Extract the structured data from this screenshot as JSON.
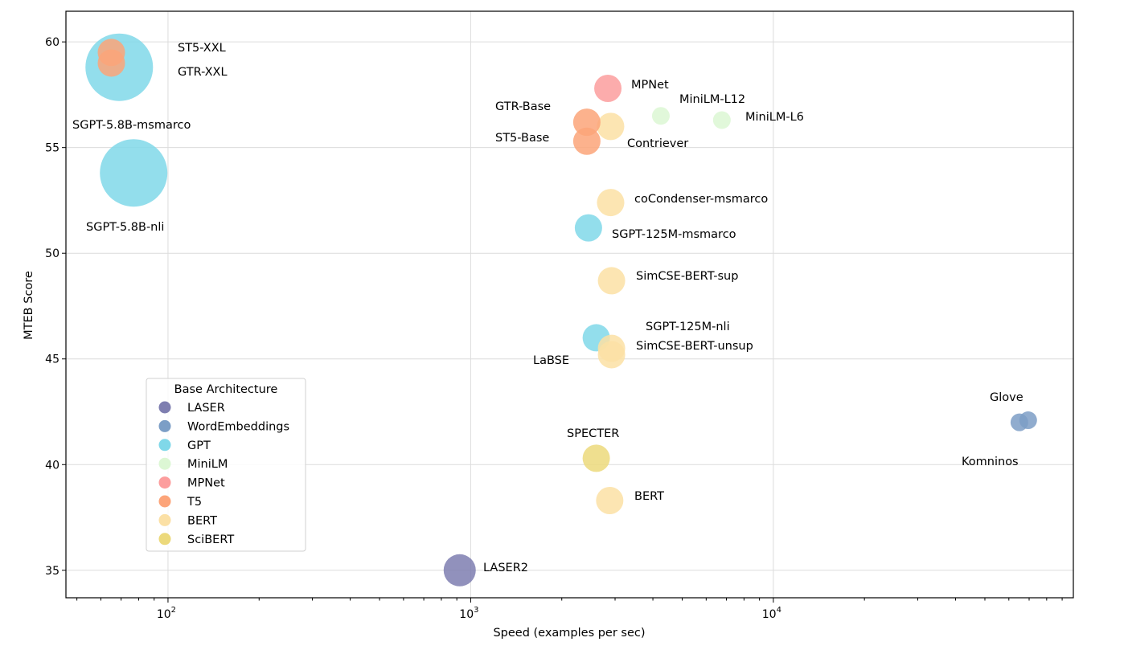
{
  "chart_data": {
    "type": "scatter",
    "title": "",
    "xlabel": "Speed (examples per sec)",
    "ylabel": "MTEB Score",
    "xscale": "log",
    "xlim": [
      46,
      98000
    ],
    "ylim": [
      33.7,
      61.45
    ],
    "x_ticks": [
      {
        "base": "10",
        "exp": "2",
        "value": 100
      },
      {
        "base": "10",
        "exp": "3",
        "value": 1000
      },
      {
        "base": "10",
        "exp": "4",
        "value": 10000
      }
    ],
    "y_ticks": [
      35,
      40,
      45,
      50,
      55,
      60
    ],
    "grid": true,
    "legend": {
      "title": "Base Architecture",
      "placement": "lower-left",
      "entries": [
        {
          "name": "LASER",
          "color": "#7e7eb0"
        },
        {
          "name": "WordEmbeddings",
          "color": "#7c9ec6"
        },
        {
          "name": "GPT",
          "color": "#80d8e9"
        },
        {
          "name": "MiniLM",
          "color": "#dcf7d4"
        },
        {
          "name": "MPNet",
          "color": "#fc9d9d"
        },
        {
          "name": "T5",
          "color": "#fca479"
        },
        {
          "name": "BERT",
          "color": "#fbe0a5"
        },
        {
          "name": "SciBERT",
          "color": "#ecd97b"
        }
      ]
    },
    "points": [
      {
        "label": "SGPT-5.8B-msmarco",
        "arch": "GPT",
        "x": 69,
        "y": 58.8
      },
      {
        "label": "SGPT-5.8B-nli",
        "arch": "GPT",
        "x": 77,
        "y": 53.8
      },
      {
        "label": "ST5-XXL",
        "arch": "T5",
        "x": 65,
        "y": 59.5
      },
      {
        "label": "GTR-XXL",
        "arch": "T5",
        "x": 65,
        "y": 59.0
      },
      {
        "label": "MPNet",
        "arch": "MPNet",
        "x": 2840,
        "y": 57.8
      },
      {
        "label": "MiniLM-L12",
        "arch": "MiniLM",
        "x": 4250,
        "y": 56.5
      },
      {
        "label": "MiniLM-L6",
        "arch": "MiniLM",
        "x": 6760,
        "y": 56.3
      },
      {
        "label": "Contriever",
        "arch": "BERT",
        "x": 2900,
        "y": 56.0
      },
      {
        "label": "GTR-Base",
        "arch": "T5",
        "x": 2420,
        "y": 56.2
      },
      {
        "label": "ST5-Base",
        "arch": "T5",
        "x": 2420,
        "y": 55.3
      },
      {
        "label": "coCondenser-msmarco",
        "arch": "BERT",
        "x": 2900,
        "y": 52.4
      },
      {
        "label": "SGPT-125M-msmarco",
        "arch": "GPT",
        "x": 2450,
        "y": 51.2
      },
      {
        "label": "SimCSE-BERT-sup",
        "arch": "BERT",
        "x": 2920,
        "y": 48.7
      },
      {
        "label": "SGPT-125M-nli",
        "arch": "GPT",
        "x": 2600,
        "y": 46.0
      },
      {
        "label": "SimCSE-BERT-unsup",
        "arch": "BERT",
        "x": 2920,
        "y": 45.5
      },
      {
        "label": "LaBSE",
        "arch": "BERT",
        "x": 2920,
        "y": 45.2
      },
      {
        "label": "SPECTER",
        "arch": "SciBERT",
        "x": 2600,
        "y": 40.3
      },
      {
        "label": "BERT",
        "arch": "BERT",
        "x": 2880,
        "y": 38.3
      },
      {
        "label": "LASER2",
        "arch": "LASER",
        "x": 920,
        "y": 35.0
      },
      {
        "label": "Komninos",
        "arch": "WordEmbeddings",
        "x": 65000,
        "y": 42.0
      },
      {
        "label": "Glove",
        "arch": "WordEmbeddings",
        "x": 69500,
        "y": 42.1
      }
    ]
  }
}
